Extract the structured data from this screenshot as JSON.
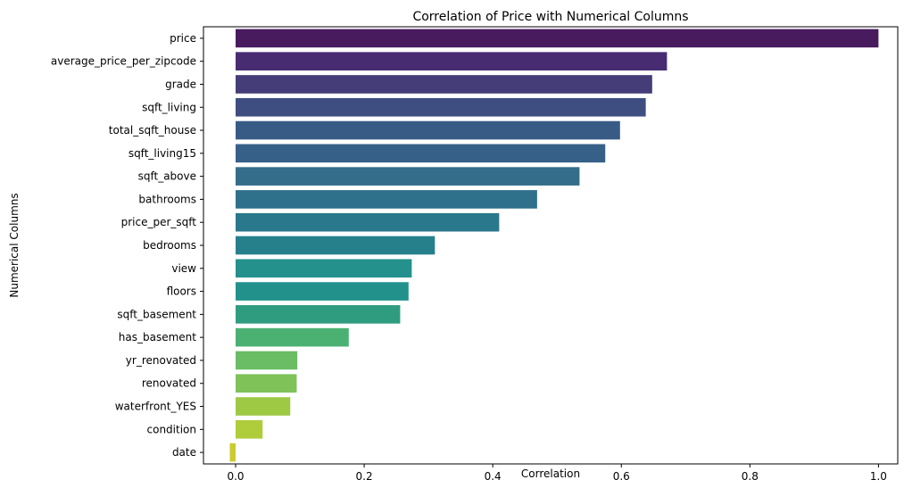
{
  "chart_data": {
    "type": "bar",
    "orientation": "horizontal",
    "title": "Correlation of Price with Numerical Columns",
    "xlabel": "Correlation",
    "ylabel": "Numerical Columns",
    "xlim": [
      -0.05,
      1.03
    ],
    "xticks": [
      0.0,
      0.2,
      0.4,
      0.6,
      0.8,
      1.0
    ],
    "xtick_labels": [
      "0.0",
      "0.2",
      "0.4",
      "0.6",
      "0.8",
      "1.0"
    ],
    "grid": false,
    "categories": [
      "price",
      "average_price_per_zipcode",
      "grade",
      "sqft_living",
      "total_sqft_house",
      "sqft_living15",
      "sqft_above",
      "bathrooms",
      "price_per_sqft",
      "bedrooms",
      "view",
      "floors",
      "sqft_basement",
      "has_basement",
      "yr_renovated",
      "renovated",
      "waterfront_YES",
      "condition",
      "date"
    ],
    "values": [
      1.0,
      0.671,
      0.648,
      0.638,
      0.598,
      0.575,
      0.535,
      0.469,
      0.41,
      0.31,
      0.274,
      0.269,
      0.256,
      0.176,
      0.096,
      0.095,
      0.085,
      0.042,
      -0.009
    ],
    "colors": [
      "#481a5e",
      "#482c71",
      "#443d78",
      "#3f4e80",
      "#385b86",
      "#376089",
      "#346d8a",
      "#2f708b",
      "#2a788c",
      "#26808c",
      "#24918c",
      "#22918b",
      "#2f9c80",
      "#4bb172",
      "#6abc65",
      "#7ec258",
      "#9ec945",
      "#afcc3a",
      "#cbcc2d"
    ]
  }
}
